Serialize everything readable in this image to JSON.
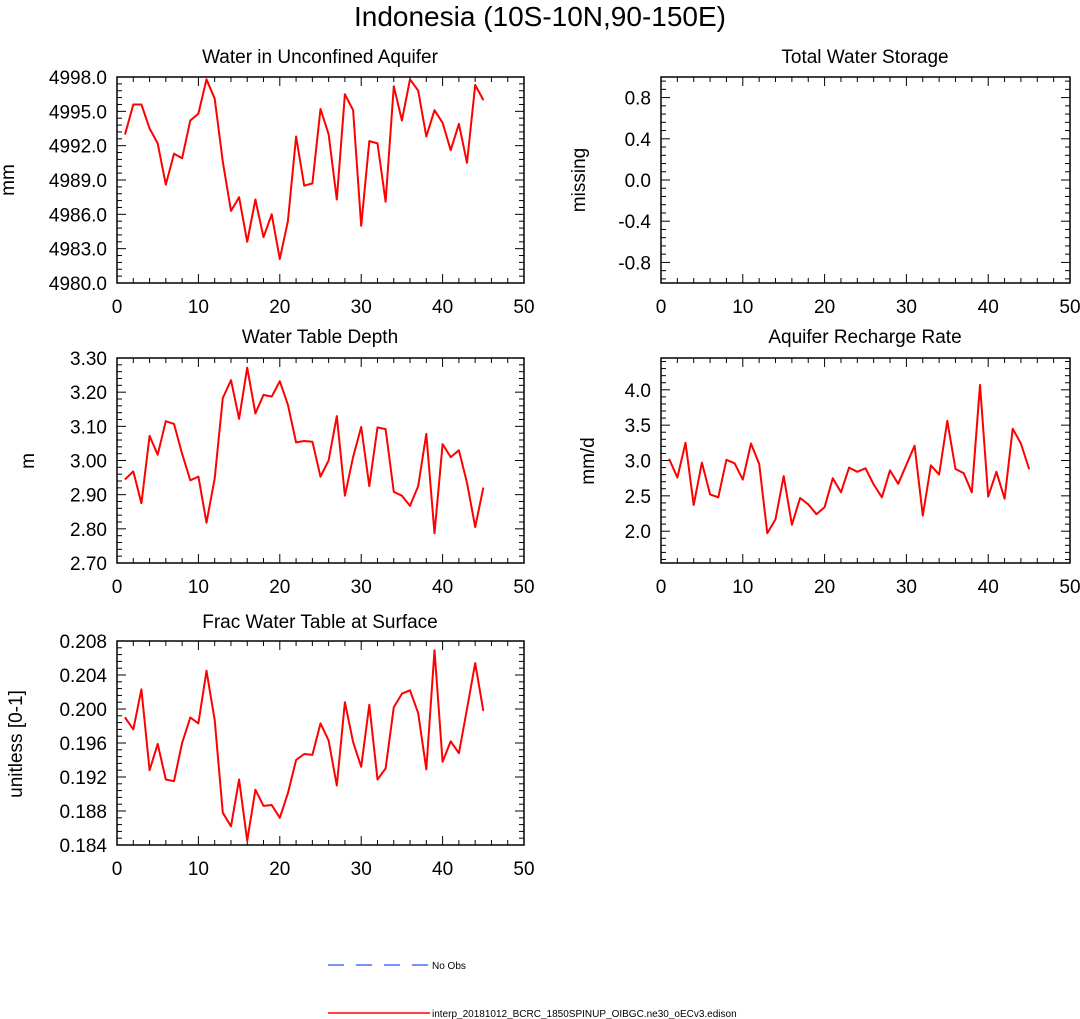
{
  "page_title": "Indonesia (10S-10N,90-150E)",
  "colors": {
    "model_line": "#ff0000",
    "obs_line": "#4d6bff",
    "axis": "#000000"
  },
  "legend": {
    "placement": "bottom-center",
    "obs_label": "No Obs",
    "model_label": "interp_20181012_BCRC_1850SPINUP_OIBGC.ne30_oECv3.edison"
  },
  "chart_data": [
    {
      "id": "wua",
      "type": "line",
      "title": "Water in Unconfined Aquifer",
      "xlabel": "",
      "ylabel": "mm",
      "xlim": [
        0,
        50
      ],
      "ylim": [
        4980,
        4998
      ],
      "x_ticks": [
        "0",
        "10",
        "20",
        "30",
        "40",
        "50"
      ],
      "y_ticks": [
        "4980.0",
        "4983.0",
        "4986.0",
        "4989.0",
        "4992.0",
        "4995.0",
        "4998.0"
      ],
      "grid": false,
      "series": [
        {
          "x": [
            1,
            2,
            3,
            4,
            5,
            6,
            7,
            8,
            9,
            10,
            11,
            12,
            13,
            14,
            15,
            16,
            17,
            18,
            19,
            20,
            21,
            22,
            23,
            24,
            25,
            26,
            27,
            28,
            29,
            30,
            31,
            32,
            33,
            34,
            35,
            36,
            37,
            38,
            39,
            40,
            41,
            42,
            43,
            44,
            45
          ],
          "values": [
            4993.0,
            4995.6,
            4995.6,
            4993.5,
            4992.2,
            4988.6,
            4991.3,
            4990.9,
            4994.2,
            4994.8,
            4997.8,
            4996.1,
            4990.6,
            4986.3,
            4987.5,
            4983.6,
            4987.3,
            4984.0,
            4986.0,
            4982.1,
            4985.4,
            4992.8,
            4988.5,
            4988.7,
            4995.2,
            4993.0,
            4987.3,
            4996.5,
            4995.1,
            4985.0,
            4992.4,
            4992.2,
            4987.1,
            4997.2,
            4994.2,
            4997.8,
            4996.8,
            4992.8,
            4995.1,
            4994.0,
            4991.6,
            4993.9,
            4990.5,
            4997.3,
            4996.0
          ]
        }
      ]
    },
    {
      "id": "tws",
      "type": "line",
      "title": "Total Water Storage",
      "xlabel": "",
      "ylabel": "missing",
      "xlim": [
        0,
        50
      ],
      "ylim": [
        -1,
        1
      ],
      "x_ticks": [
        "0",
        "10",
        "20",
        "30",
        "40",
        "50"
      ],
      "y_ticks": [
        "-0.8",
        "-0.4",
        "0.0",
        "0.4",
        "0.8"
      ],
      "grid": false,
      "series": []
    },
    {
      "id": "wtd",
      "type": "line",
      "title": "Water Table Depth",
      "xlabel": "",
      "ylabel": "m",
      "xlim": [
        0,
        50
      ],
      "ylim": [
        2.7,
        3.3
      ],
      "x_ticks": [
        "0",
        "10",
        "20",
        "30",
        "40",
        "50"
      ],
      "y_ticks": [
        "2.70",
        "2.80",
        "2.90",
        "3.00",
        "3.10",
        "3.20",
        "3.30"
      ],
      "grid": false,
      "series": [
        {
          "x": [
            1,
            2,
            3,
            4,
            5,
            6,
            7,
            8,
            9,
            10,
            11,
            12,
            13,
            14,
            15,
            16,
            17,
            18,
            19,
            20,
            21,
            22,
            23,
            24,
            25,
            26,
            27,
            28,
            29,
            30,
            31,
            32,
            33,
            34,
            35,
            36,
            37,
            38,
            39,
            40,
            41,
            42,
            43,
            44,
            45
          ],
          "values": [
            2.945,
            2.968,
            2.875,
            3.072,
            3.017,
            3.115,
            3.107,
            3.02,
            2.942,
            2.953,
            2.818,
            2.948,
            3.183,
            3.235,
            3.122,
            3.272,
            3.138,
            3.192,
            3.187,
            3.232,
            3.163,
            3.053,
            3.057,
            3.055,
            2.953,
            3.0,
            3.13,
            2.897,
            3.01,
            3.098,
            2.925,
            3.097,
            3.092,
            2.908,
            2.897,
            2.867,
            2.925,
            3.078,
            2.787,
            3.048,
            3.01,
            3.03,
            2.935,
            2.805,
            2.92
          ]
        }
      ]
    },
    {
      "id": "arr",
      "type": "line",
      "title": "Aquifer Recharge Rate",
      "xlabel": "",
      "ylabel": "mm/d",
      "xlim": [
        0,
        50
      ],
      "ylim": [
        1.55,
        4.45
      ],
      "x_ticks": [
        "0",
        "10",
        "20",
        "30",
        "40",
        "50"
      ],
      "y_ticks": [
        "2.0",
        "2.5",
        "3.0",
        "3.5",
        "4.0"
      ],
      "grid": false,
      "series": [
        {
          "x": [
            1,
            2,
            3,
            4,
            5,
            6,
            7,
            8,
            9,
            10,
            11,
            12,
            13,
            14,
            15,
            16,
            17,
            18,
            19,
            20,
            21,
            22,
            23,
            24,
            25,
            26,
            27,
            28,
            29,
            30,
            31,
            32,
            33,
            34,
            35,
            36,
            37,
            38,
            39,
            40,
            41,
            42,
            43,
            44,
            45
          ],
          "values": [
            3.02,
            2.76,
            3.25,
            2.37,
            2.97,
            2.52,
            2.48,
            3.01,
            2.96,
            2.73,
            3.24,
            2.95,
            1.97,
            2.17,
            2.78,
            2.09,
            2.47,
            2.38,
            2.24,
            2.34,
            2.75,
            2.55,
            2.9,
            2.84,
            2.89,
            2.66,
            2.48,
            2.86,
            2.67,
            2.94,
            3.21,
            2.22,
            2.93,
            2.8,
            3.56,
            2.88,
            2.82,
            2.55,
            4.07,
            2.49,
            2.84,
            2.46,
            3.45,
            3.24,
            2.88
          ]
        }
      ]
    },
    {
      "id": "fwt",
      "type": "line",
      "title": "Frac Water Table at Surface",
      "xlabel": "",
      "ylabel": "unitless [0-1]",
      "xlim": [
        0,
        50
      ],
      "ylim": [
        0.184,
        0.208
      ],
      "x_ticks": [
        "0",
        "10",
        "20",
        "30",
        "40",
        "50"
      ],
      "y_ticks": [
        "0.184",
        "0.188",
        "0.192",
        "0.196",
        "0.200",
        "0.204",
        "0.208"
      ],
      "grid": false,
      "series": [
        {
          "x": [
            1,
            2,
            3,
            4,
            5,
            6,
            7,
            8,
            9,
            10,
            11,
            12,
            13,
            14,
            15,
            16,
            17,
            18,
            19,
            20,
            21,
            22,
            23,
            24,
            25,
            26,
            27,
            28,
            29,
            30,
            31,
            32,
            33,
            34,
            35,
            36,
            37,
            38,
            39,
            40,
            41,
            42,
            43,
            44,
            45
          ],
          "values": [
            0.199,
            0.1976,
            0.2023,
            0.1928,
            0.1959,
            0.1917,
            0.1915,
            0.196,
            0.199,
            0.1983,
            0.2045,
            0.1987,
            0.1878,
            0.1862,
            0.1917,
            0.1845,
            0.1905,
            0.1886,
            0.1887,
            0.1872,
            0.1901,
            0.194,
            0.1947,
            0.1946,
            0.1983,
            0.1963,
            0.191,
            0.2008,
            0.1961,
            0.1932,
            0.2005,
            0.1917,
            0.193,
            0.2002,
            0.2018,
            0.2022,
            0.1995,
            0.1929,
            0.2069,
            0.1938,
            0.1962,
            0.1948,
            0.2,
            0.2054,
            0.1998
          ]
        }
      ]
    }
  ]
}
